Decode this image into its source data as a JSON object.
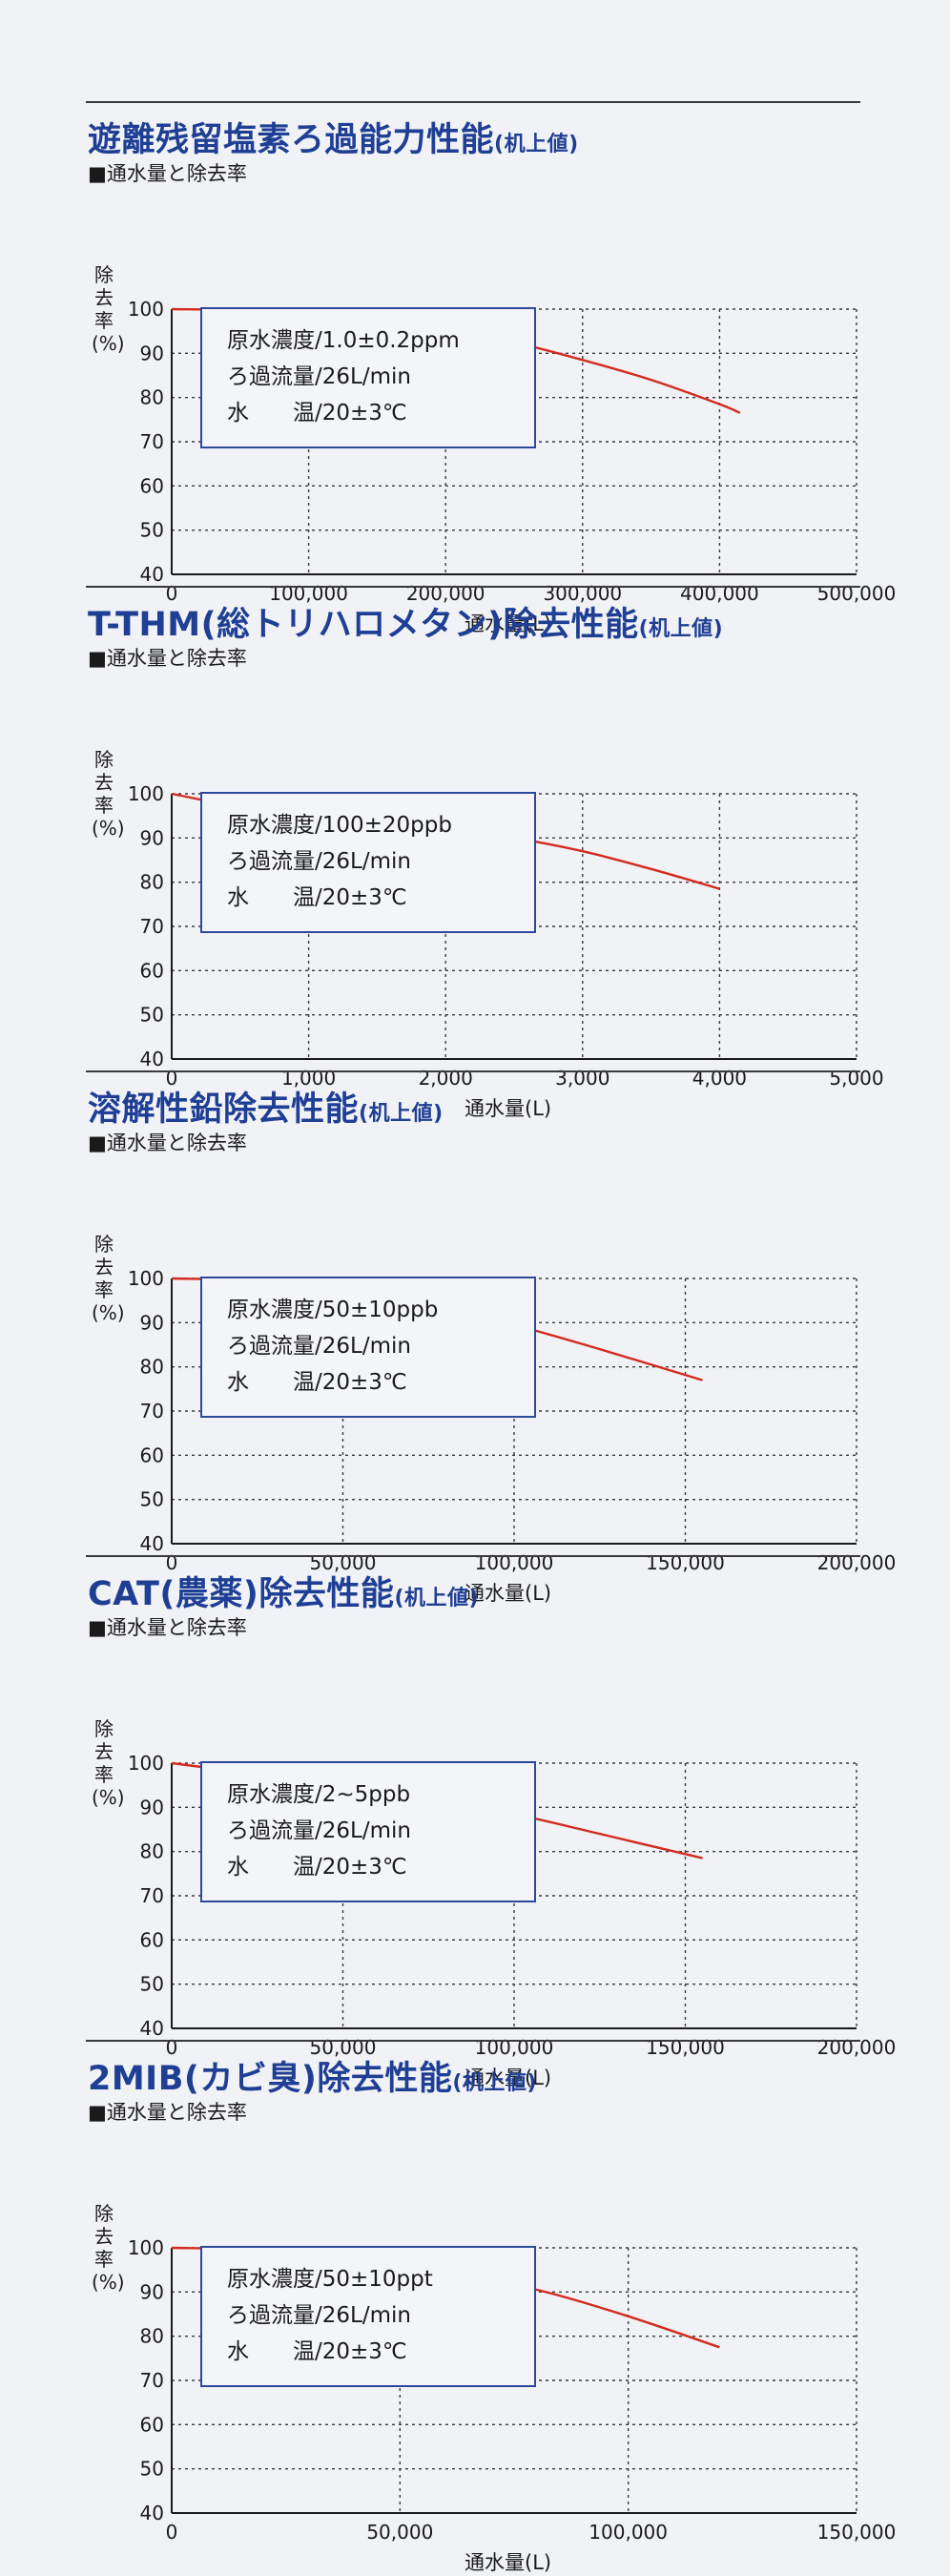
{
  "subtitle": "■通水量と除去率",
  "ylabel": "除去率(%)",
  "xlabel": "通水量(L)",
  "title_suffix": "(机上値)",
  "curve_color": "#d22b1e",
  "title_color": "#1f3f95",
  "charts": [
    {
      "title": "遊離残留塩素ろ過能力性能",
      "info": [
        "原水濃度/1.0±0.2ppm",
        "ろ過流量/26L/min",
        "水　　温/20±3℃"
      ],
      "chart_data": {
        "type": "line",
        "title": "遊離残留塩素ろ過能力性能(机上値)",
        "xlabel": "通水量(L)",
        "ylabel": "除去率(%)",
        "xlim": [
          0,
          500000
        ],
        "ylim": [
          40,
          100
        ],
        "xticks": [
          0,
          100000,
          200000,
          300000,
          400000,
          500000
        ],
        "xtick_labels": [
          "0",
          "100,000",
          "200,000",
          "300,000",
          "400,000",
          "500,000"
        ],
        "yticks": [
          40,
          50,
          60,
          70,
          80,
          90,
          100
        ],
        "grid": true,
        "series": [
          {
            "x": [
              0,
              50000,
              100000,
              150000,
              200000,
              250000,
              300000,
              350000,
              400000,
              415000
            ],
            "y": [
              100,
              99.8,
              99,
              97.8,
              95.5,
              92.5,
              88.5,
              84,
              78.5,
              76.5
            ]
          }
        ]
      }
    },
    {
      "title": "T-THM(総トリハロメタン)除去性能",
      "info": [
        "原水濃度/100±20ppb",
        "ろ過流量/26L/min",
        "水　　温/20±3℃"
      ],
      "chart_data": {
        "type": "line",
        "title": "T-THM(総トリハロメタン)除去性能(机上値)",
        "xlabel": "通水量(L)",
        "ylabel": "除去率(%)",
        "xlim": [
          0,
          5000
        ],
        "ylim": [
          40,
          100
        ],
        "xticks": [
          0,
          1000,
          2000,
          3000,
          4000,
          5000
        ],
        "xtick_labels": [
          "0",
          "1,000",
          "2,000",
          "3,000",
          "4,000",
          "5,000"
        ],
        "yticks": [
          40,
          50,
          60,
          70,
          80,
          90,
          100
        ],
        "grid": true,
        "series": [
          {
            "x": [
              0,
              500,
              1000,
              1500,
              2000,
              2500,
              3000,
              3500,
              4000
            ],
            "y": [
              100,
              97,
              95,
              93.5,
              92,
              90,
              87,
              83,
              78.5
            ]
          }
        ]
      }
    },
    {
      "title": "溶解性鉛除去性能",
      "info": [
        "原水濃度/50±10ppb",
        "ろ過流量/26L/min",
        "水　　温/20±3℃"
      ],
      "chart_data": {
        "type": "line",
        "title": "溶解性鉛除去性能(机上値)",
        "xlabel": "通水量(L)",
        "ylabel": "除去率(%)",
        "xlim": [
          0,
          200000
        ],
        "ylim": [
          40,
          100
        ],
        "xticks": [
          0,
          50000,
          100000,
          150000,
          200000
        ],
        "xtick_labels": [
          "0",
          "50,000",
          "100,000",
          "150,000",
          "200,000"
        ],
        "yticks": [
          40,
          50,
          60,
          70,
          80,
          90,
          100
        ],
        "grid": true,
        "series": [
          {
            "x": [
              0,
              25000,
              50000,
              75000,
              100000,
              125000,
              155000
            ],
            "y": [
              100,
              99.5,
              97.5,
              94,
              89.5,
              84,
              77
            ]
          }
        ]
      }
    },
    {
      "title": "CAT(農薬)除去性能",
      "info": [
        "原水濃度/2~5ppb",
        "ろ過流量/26L/min",
        "水　　温/20±3℃"
      ],
      "chart_data": {
        "type": "line",
        "title": "CAT(農薬)除去性能(机上値)",
        "xlabel": "通水量(L)",
        "ylabel": "除去率(%)",
        "xlim": [
          0,
          200000
        ],
        "ylim": [
          40,
          100
        ],
        "xticks": [
          0,
          50000,
          100000,
          150000,
          200000
        ],
        "xtick_labels": [
          "0",
          "50,000",
          "100,000",
          "150,000",
          "200,000"
        ],
        "yticks": [
          40,
          50,
          60,
          70,
          80,
          90,
          100
        ],
        "grid": true,
        "series": [
          {
            "x": [
              0,
              25000,
              50000,
              75000,
              100000,
              125000,
              155000
            ],
            "y": [
              100,
              97.5,
              95,
              92,
              88.5,
              84,
              78.5
            ]
          }
        ]
      }
    },
    {
      "title": "2MIB(カビ臭)除去性能",
      "info": [
        "原水濃度/50±10ppt",
        "ろ過流量/26L/min",
        "水　　温/20±3℃"
      ],
      "chart_data": {
        "type": "line",
        "title": "2MIB(カビ臭)除去性能(机上値)",
        "xlabel": "通水量(L)",
        "ylabel": "除去率(%)",
        "xlim": [
          0,
          150000
        ],
        "ylim": [
          40,
          100
        ],
        "xticks": [
          0,
          50000,
          100000,
          150000
        ],
        "xtick_labels": [
          "0",
          "50,000",
          "100,000",
          "150,000"
        ],
        "yticks": [
          40,
          50,
          60,
          70,
          80,
          90,
          100
        ],
        "grid": true,
        "series": [
          {
            "x": [
              0,
              20000,
              40000,
              60000,
              80000,
              100000,
              120000
            ],
            "y": [
              100,
              99.5,
              97.5,
              94.5,
              90.5,
              84.5,
              77.5
            ]
          }
        ]
      }
    }
  ]
}
